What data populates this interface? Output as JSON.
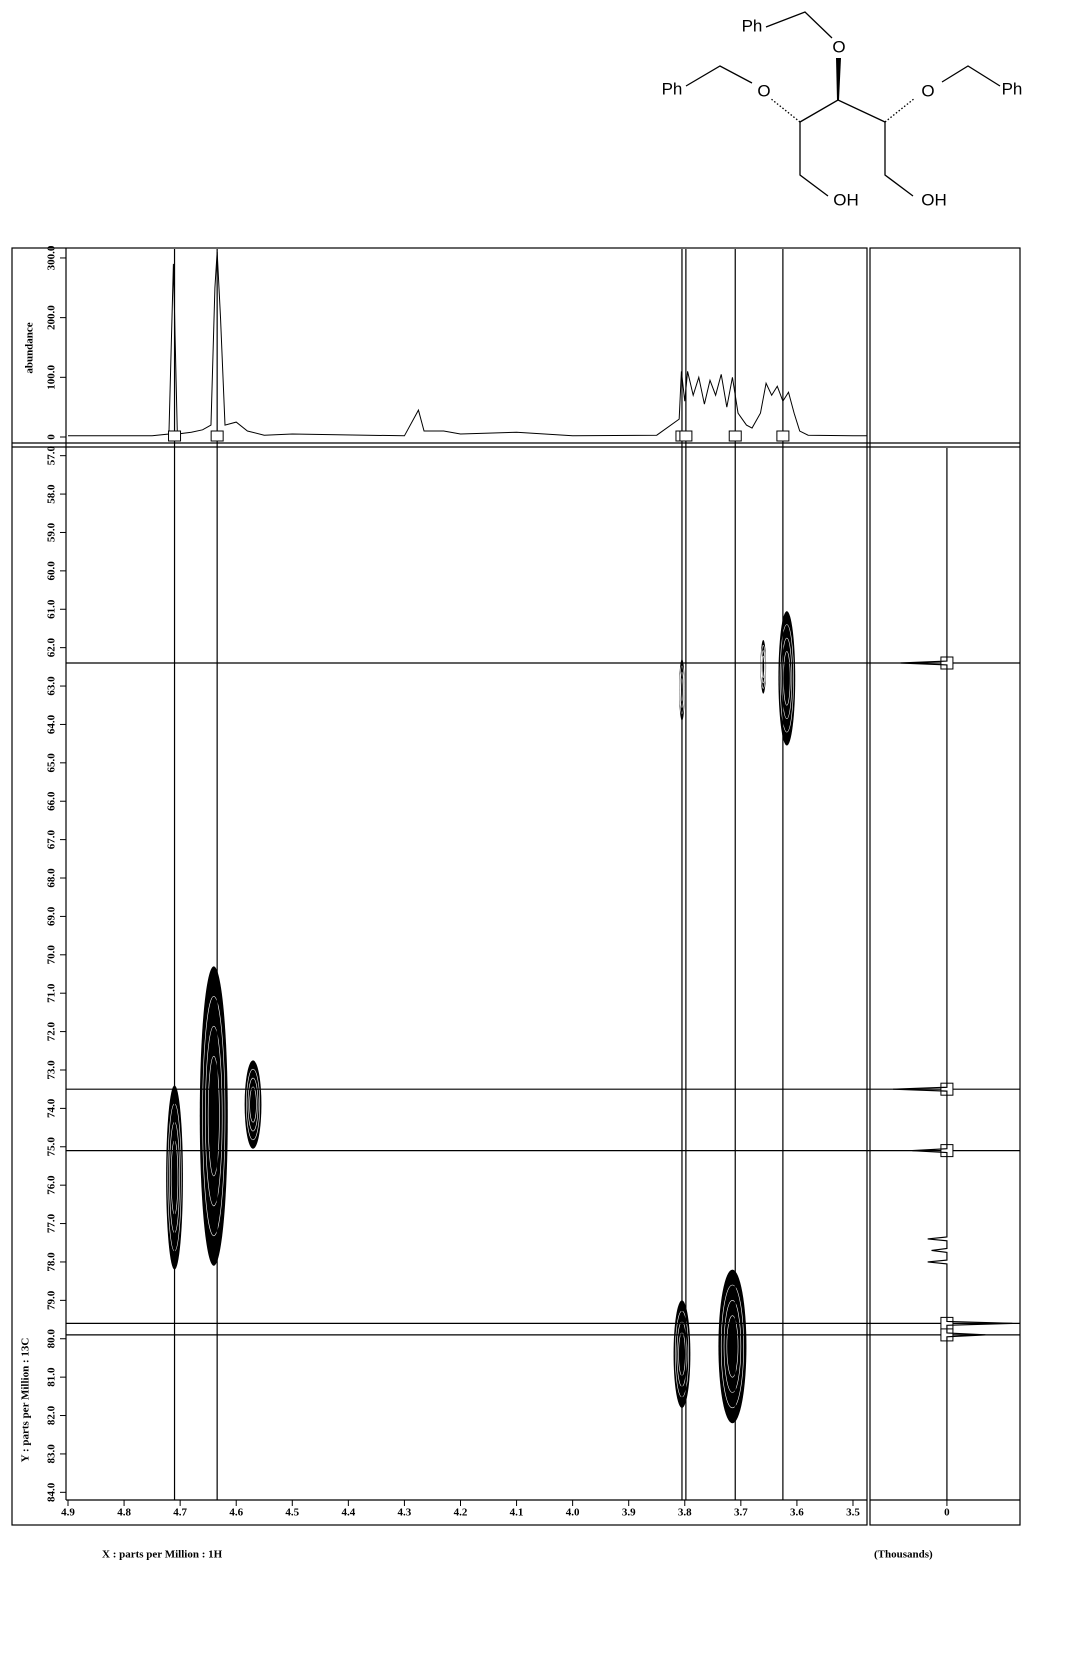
{
  "molecule": {
    "labels": [
      "Ph",
      "O",
      "Ph",
      "O",
      "O",
      "Ph",
      "OH",
      "OH"
    ]
  },
  "chart_data": [
    {
      "type": "line",
      "y_label": "abundance",
      "xlim": [
        4.9,
        3.475
      ],
      "ylim": [
        0,
        315
      ],
      "yticks": [
        0,
        {
          "value": 100,
          "label": "100.0"
        },
        {
          "value": 200,
          "label": "200.0"
        },
        {
          "value": 300,
          "label": "300.0"
        }
      ],
      "color": "#000000",
      "x": [
        4.9,
        4.75,
        4.72,
        4.712,
        4.705,
        4.68,
        4.66,
        4.645,
        4.638,
        4.634,
        4.628,
        4.62,
        4.6,
        4.58,
        4.55,
        4.5,
        4.3,
        4.275,
        4.265,
        4.23,
        4.2,
        4.1,
        4.0,
        3.85,
        3.81,
        3.806,
        3.8,
        3.795,
        3.785,
        3.775,
        3.765,
        3.755,
        3.745,
        3.735,
        3.725,
        3.715,
        3.705,
        3.69,
        3.68,
        3.665,
        3.655,
        3.645,
        3.635,
        3.625,
        3.615,
        3.605,
        3.595,
        3.58,
        3.5,
        3.475
      ],
      "values": [
        2,
        2,
        5,
        290,
        5,
        8,
        12,
        20,
        250,
        310,
        200,
        20,
        25,
        10,
        3,
        5,
        2,
        45,
        10,
        10,
        5,
        8,
        2,
        3,
        30,
        110,
        60,
        110,
        70,
        100,
        55,
        95,
        70,
        105,
        50,
        100,
        40,
        20,
        15,
        40,
        90,
        70,
        85,
        60,
        75,
        40,
        10,
        3,
        2,
        2
      ]
    },
    {
      "type": "contour",
      "x_label": "X : parts per Million : 1H",
      "y_label": "Y : parts per Million : 13C",
      "xlim": [
        4.9,
        3.475
      ],
      "ylim": [
        56.8,
        84.2
      ],
      "xticks": [
        4.9,
        4.8,
        4.7,
        4.6,
        4.5,
        4.4,
        4.3,
        4.2,
        4.1,
        {
          "value": 4,
          "label": "4.0"
        },
        3.9,
        3.8,
        3.7,
        3.6,
        3.5
      ],
      "yticks": [
        {
          "value": 57,
          "label": "57.0"
        },
        {
          "value": 58,
          "label": "58.0"
        },
        {
          "value": 59,
          "label": "59.0"
        },
        {
          "value": 60,
          "label": "60.0"
        },
        {
          "value": 61,
          "label": "61.0"
        },
        {
          "value": 62,
          "label": "62.0"
        },
        {
          "value": 63,
          "label": "63.0"
        },
        {
          "value": 64,
          "label": "64.0"
        },
        {
          "value": 65,
          "label": "65.0"
        },
        {
          "value": 66,
          "label": "66.0"
        },
        {
          "value": 67,
          "label": "67.0"
        },
        {
          "value": 68,
          "label": "68.0"
        },
        {
          "value": 69,
          "label": "69.0"
        },
        {
          "value": 70,
          "label": "70.0"
        },
        {
          "value": 71,
          "label": "71.0"
        },
        {
          "value": 72,
          "label": "72.0"
        },
        {
          "value": 73,
          "label": "73.0"
        },
        {
          "value": 74,
          "label": "74.0"
        },
        {
          "value": 75,
          "label": "75.0"
        },
        {
          "value": 76,
          "label": "76.0"
        },
        {
          "value": 77,
          "label": "77.0"
        },
        {
          "value": 78,
          "label": "78.0"
        },
        {
          "value": 79,
          "label": "79.0"
        },
        {
          "value": 80,
          "label": "80.0"
        },
        {
          "value": 81,
          "label": "81.0"
        },
        {
          "value": 82,
          "label": "82.0"
        },
        {
          "value": 83,
          "label": "83.0"
        },
        {
          "value": 84,
          "label": "84.0"
        }
      ],
      "color": "#000000",
      "x": [
        4.71,
        4.64,
        4.57,
        3.805,
        3.66,
        3.618,
        3.805,
        3.715
      ],
      "values": [
        75.8,
        74.2,
        73.9,
        63.1,
        62.5,
        62.8,
        80.4,
        80.2
      ],
      "x_width": [
        0.03,
        0.05,
        0.03,
        0.01,
        0.01,
        0.03,
        0.03,
        0.05
      ],
      "y_width": [
        4.8,
        7.8,
        2.3,
        1.6,
        1.4,
        3.5,
        2.8,
        4.0
      ],
      "cursor_x": [
        4.71,
        4.634,
        3.805,
        3.798,
        3.71,
        3.625
      ],
      "cursor_y": [
        62.4,
        73.5,
        75.1,
        79.6,
        79.9
      ]
    },
    {
      "type": "projection",
      "x_label": "(Thousands)",
      "xlim": [
        -10,
        9.5
      ],
      "xticks": [
        0
      ],
      "color": "#000000",
      "y": [
        56.8,
        62.35,
        62.4,
        62.45,
        73.45,
        73.5,
        73.55,
        75.05,
        75.1,
        75.15,
        77.35,
        77.4,
        77.45,
        77.65,
        77.7,
        77.75,
        77.95,
        78.0,
        78.05,
        79.55,
        79.6,
        79.65,
        79.85,
        79.9,
        79.95,
        84.2
      ],
      "values": [
        0,
        0,
        -6,
        0,
        0,
        -7,
        0,
        0,
        -4.5,
        0,
        0,
        -2.5,
        0,
        0,
        -2,
        0,
        0,
        -2.5,
        0,
        0,
        8.5,
        0,
        0,
        5,
        0,
        0
      ]
    }
  ]
}
